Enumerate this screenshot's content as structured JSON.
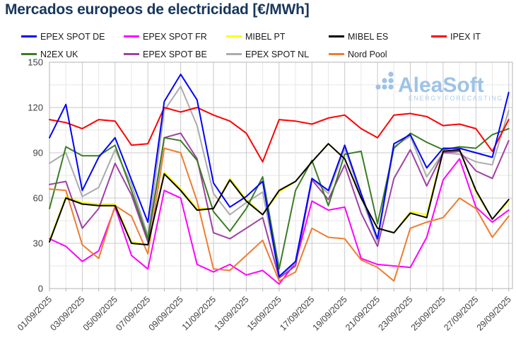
{
  "title": "Mercados europeos de electricidad [€/MWh]",
  "logo": {
    "name": "AleaSoft",
    "tagline": "ENERGY FORECASTING",
    "color": "#9DC3E6",
    "tagline_color": "#AECDEB"
  },
  "axis": {
    "label_color": "#3f3f3f",
    "grid_major": "#c9c9c9",
    "grid_minor": "#e7e7e7",
    "border": "#b3b3b3"
  },
  "chart_data": {
    "type": "line",
    "title": "Mercados europeos de electricidad [€/MWh]",
    "xlabel": "",
    "ylabel": "",
    "ylim": [
      0,
      150
    ],
    "y_ticks": [
      0,
      30,
      60,
      90,
      120,
      150
    ],
    "grid": true,
    "legend_position": "top",
    "x": [
      "01/09/2025",
      "02/09/2025",
      "03/09/2025",
      "04/09/2025",
      "05/09/2025",
      "06/09/2025",
      "07/09/2025",
      "08/09/2025",
      "09/09/2025",
      "10/09/2025",
      "11/09/2025",
      "12/09/2025",
      "13/09/2025",
      "14/09/2025",
      "15/09/2025",
      "16/09/2025",
      "17/09/2025",
      "18/09/2025",
      "19/09/2025",
      "20/09/2025",
      "21/09/2025",
      "22/09/2025",
      "23/09/2025",
      "24/09/2025",
      "25/09/2025",
      "26/09/2025",
      "27/09/2025",
      "28/09/2025",
      "29/09/2025"
    ],
    "x_labeled_every": 2,
    "series": [
      {
        "name": "EPEX SPOT DE",
        "color": "#0000FF",
        "values": [
          100,
          122,
          65,
          87,
          100,
          72,
          44,
          124,
          142,
          125,
          70,
          54,
          61,
          71,
          8,
          18,
          73,
          65,
          95,
          63,
          33,
          96,
          102,
          80,
          93,
          93,
          90,
          87,
          130
        ]
      },
      {
        "name": "EPEX SPOT FR",
        "color": "#FF00FF",
        "values": [
          33,
          28,
          18,
          25,
          54,
          22,
          13,
          65,
          60,
          16,
          11,
          16,
          9,
          12,
          3,
          17,
          58,
          52,
          54,
          20,
          16,
          15,
          14,
          34,
          72,
          86,
          54,
          44,
          52
        ]
      },
      {
        "name": "MIBEL PT",
        "color": "#FFFF00",
        "values": [
          32,
          61,
          57,
          56,
          56,
          31,
          29,
          77,
          66,
          53,
          53,
          73,
          59,
          49,
          64,
          71,
          84,
          96,
          86,
          60,
          40,
          37,
          51,
          49,
          92,
          93,
          64,
          46,
          58
        ]
      },
      {
        "name": "MIBEL ES",
        "color": "#000000",
        "values": [
          31,
          60,
          56,
          55,
          55,
          30,
          29,
          76,
          65,
          52,
          53,
          72,
          58,
          49,
          65,
          71,
          84,
          96,
          86,
          60,
          40,
          37,
          50,
          47,
          91,
          92,
          65,
          46,
          59
        ]
      },
      {
        "name": "IPEX IT",
        "color": "#FF0000",
        "values": [
          112,
          110,
          106,
          112,
          111,
          95,
          96,
          120,
          117,
          120,
          115,
          111,
          103,
          84,
          112,
          111,
          109,
          113,
          115,
          106,
          100,
          115,
          116,
          114,
          108,
          109,
          106,
          91,
          112
        ]
      },
      {
        "name": "N2EX UK",
        "color": "#3A7D23",
        "values": [
          53,
          94,
          88,
          88,
          95,
          65,
          33,
          100,
          98,
          85,
          51,
          38,
          53,
          74,
          13,
          65,
          85,
          55,
          89,
          91,
          43,
          93,
          103,
          97,
          92,
          94,
          93,
          102,
          106
        ]
      },
      {
        "name": "EPEX SPOT BE",
        "color": "#A040A4",
        "values": [
          69,
          71,
          40,
          53,
          83,
          62,
          31,
          100,
          103,
          86,
          37,
          33,
          40,
          47,
          7,
          15,
          72,
          59,
          82,
          50,
          28,
          73,
          92,
          68,
          90,
          91,
          78,
          73,
          98
        ]
      },
      {
        "name": "EPEX SPOT NL",
        "color": "#ABABAB",
        "values": [
          83,
          90,
          61,
          67,
          92,
          69,
          35,
          118,
          134,
          108,
          63,
          49,
          57,
          64,
          8,
          17,
          73,
          63,
          93,
          61,
          31,
          94,
          101,
          74,
          90,
          89,
          84,
          82,
          118
        ]
      },
      {
        "name": "Nord Pool",
        "color": "#ED7D31",
        "values": [
          66,
          65,
          29,
          20,
          55,
          48,
          23,
          93,
          90,
          58,
          13,
          12,
          22,
          32,
          5,
          11,
          40,
          34,
          33,
          19,
          14,
          5,
          40,
          44,
          47,
          60,
          53,
          34,
          48
        ]
      }
    ],
    "draw_order": [
      "MIBEL PT",
      "EPEX SPOT FR",
      "EPEX SPOT NL",
      "EPEX SPOT BE",
      "N2EX UK",
      "Nord Pool",
      "IPEX IT",
      "EPEX SPOT DE",
      "MIBEL ES"
    ]
  }
}
